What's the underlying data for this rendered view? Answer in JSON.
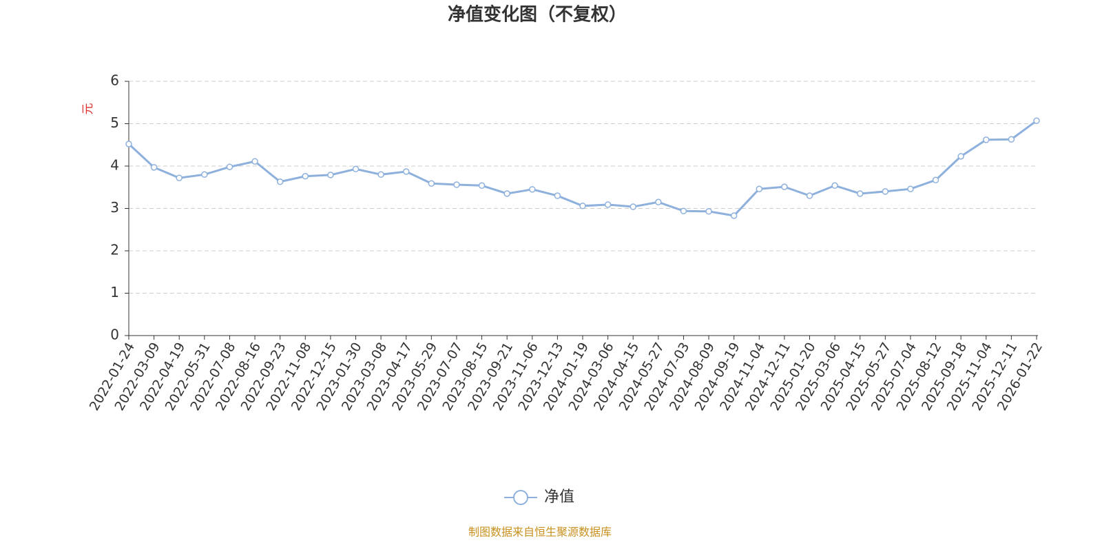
{
  "chart_data": {
    "type": "line",
    "title": "净值变化图（不复权）",
    "y_label": "元",
    "source": "制图数据来自恒生聚源数据库",
    "categories": [
      "2022-01-24",
      "2022-03-09",
      "2022-04-19",
      "2022-05-31",
      "2022-07-08",
      "2022-08-16",
      "2022-09-23",
      "2022-11-08",
      "2022-12-15",
      "2023-01-30",
      "2023-03-08",
      "2023-04-17",
      "2023-05-29",
      "2023-07-07",
      "2023-08-15",
      "2023-09-21",
      "2023-11-06",
      "2023-12-13",
      "2024-01-19",
      "2024-03-06",
      "2024-04-15",
      "2024-05-27",
      "2024-07-03",
      "2024-08-09",
      "2024-09-19",
      "2024-11-04",
      "2024-12-11",
      "2025-01-20",
      "2025-03-06",
      "2025-04-15",
      "2025-05-27",
      "2025-07-04",
      "2025-08-12",
      "2025-09-18",
      "2025-11-04",
      "2025-12-11",
      "2026-01-22"
    ],
    "series": [
      {
        "name": "净值",
        "color": "#8eb0dc",
        "values": [
          4.52,
          3.97,
          3.72,
          3.8,
          3.98,
          4.11,
          3.63,
          3.76,
          3.79,
          3.93,
          3.8,
          3.87,
          3.59,
          3.56,
          3.54,
          3.35,
          3.45,
          3.3,
          3.06,
          3.09,
          3.04,
          3.15,
          2.94,
          2.93,
          2.83,
          3.46,
          3.51,
          3.3,
          3.54,
          3.35,
          3.4,
          3.46,
          3.67,
          4.23,
          4.62,
          4.63,
          5.07
        ]
      }
    ],
    "ylim": [
      0,
      6
    ],
    "yticks": [
      0,
      1,
      2,
      3,
      4,
      5,
      6
    ],
    "grid": true
  }
}
